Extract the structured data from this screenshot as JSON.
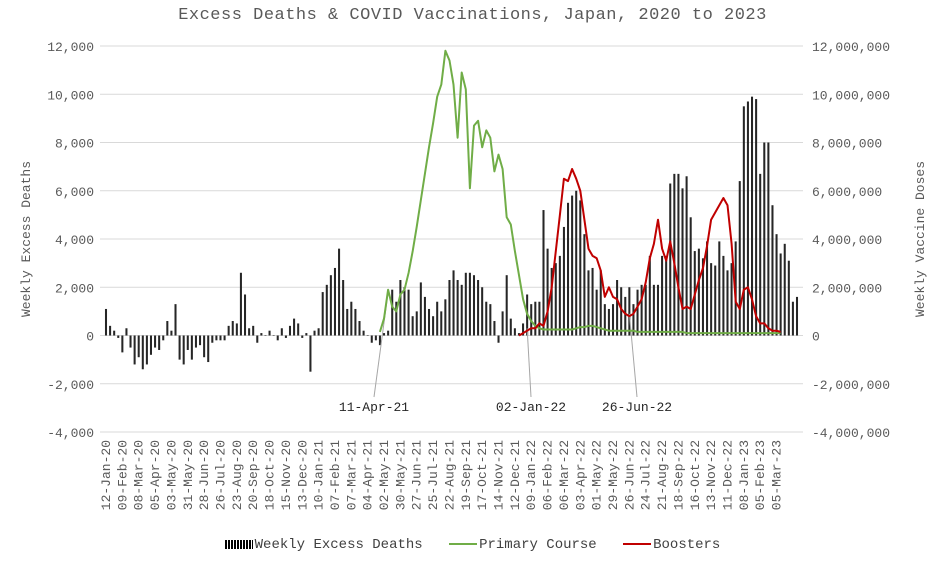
{
  "chart_data": {
    "type": "bar",
    "title": "Excess Deaths & COVID Vaccinations, Japan, 2020 to 2023",
    "ylabel": "Weekly Excess Deaths",
    "ylabel_right": "Weekly Vaccine Doses",
    "ylim": [
      -4000,
      12000
    ],
    "ylim_right": [
      -4000000,
      12000000
    ],
    "y_ticks": [
      "-4,000",
      "-2,000",
      "0",
      "2,000",
      "4,000",
      "6,000",
      "8,000",
      "10,000",
      "12,000"
    ],
    "y_right_ticks": [
      "-4,000,000",
      "-2,000,000",
      "0",
      "2,000,000",
      "4,000,000",
      "6,000,000",
      "8,000,000",
      "10,000,000",
      "12,000,000"
    ],
    "grid": true,
    "legend_position": "bottom",
    "x_tick_labels": [
      "12-Jan-20",
      "09-Feb-20",
      "08-Mar-20",
      "05-Apr-20",
      "03-May-20",
      "31-May-20",
      "28-Jun-20",
      "26-Jul-20",
      "23-Aug-20",
      "20-Sep-20",
      "18-Oct-20",
      "15-Nov-20",
      "13-Dec-20",
      "10-Jan-21",
      "07-Feb-21",
      "07-Mar-21",
      "04-Apr-21",
      "02-May-21",
      "30-May-21",
      "27-Jun-21",
      "25-Jul-21",
      "22-Aug-21",
      "19-Sep-21",
      "17-Oct-21",
      "14-Nov-21",
      "12-Dec-21",
      "09-Jan-22",
      "06-Feb-22",
      "06-Mar-22",
      "03-Apr-22",
      "01-May-22",
      "29-May-22",
      "26-Jun-22",
      "24-Jul-22",
      "21-Aug-22",
      "18-Sep-22",
      "16-Oct-22",
      "13-Nov-22",
      "11-Dec-22",
      "08-Jan-23",
      "05-Feb-23",
      "05-Mar-23"
    ],
    "series": [
      {
        "name": "Weekly Excess Deaths",
        "kind": "bar",
        "color": "#262626",
        "values": [
          1100,
          400,
          200,
          -100,
          -700,
          300,
          -500,
          -1200,
          -900,
          -1400,
          -1200,
          -800,
          -500,
          -600,
          -200,
          600,
          200,
          1300,
          -1000,
          -1200,
          -600,
          -1000,
          -500,
          -400,
          -900,
          -1100,
          -300,
          -200,
          -200,
          -200,
          400,
          600,
          500,
          2600,
          1700,
          300,
          400,
          -300,
          100,
          0,
          200,
          0,
          -200,
          300,
          -100,
          400,
          700,
          500,
          -100,
          100,
          -1500,
          200,
          300,
          1800,
          2100,
          2500,
          2800,
          3600,
          2300,
          1100,
          1400,
          1100,
          600,
          200,
          0,
          -300,
          -200,
          -400,
          100,
          200,
          1900,
          1400,
          2300,
          2000,
          1900,
          800,
          1000,
          2200,
          1600,
          1100,
          800,
          1400,
          1000,
          1500,
          2300,
          2700,
          2300,
          2100,
          2600,
          2600,
          2500,
          2300,
          2000,
          1400,
          1300,
          600,
          -300,
          1000,
          2500,
          700,
          300,
          100,
          500,
          1700,
          1300,
          1400,
          1400,
          5200,
          3600,
          2800,
          3000,
          3300,
          4500,
          5500,
          5800,
          6000,
          5600,
          4200,
          2700,
          2800,
          1900,
          2700,
          1300,
          1100,
          1300,
          2300,
          2000,
          1600,
          2000,
          1300,
          1900,
          2100,
          2100,
          3300,
          2100,
          2100,
          3300,
          3300,
          6300,
          6700,
          6700,
          6100,
          6600,
          4900,
          3500,
          3600,
          3200,
          3900,
          3000,
          2900,
          3900,
          3300,
          2700,
          3000,
          3900,
          6400,
          9500,
          9700,
          9900,
          9800,
          6700,
          8000,
          8000,
          5400,
          4200,
          3400,
          3800,
          3100,
          1400,
          1600
        ]
      },
      {
        "name": "Primary Course",
        "kind": "line",
        "color": "#70ad47",
        "values": [
          150000,
          700000,
          1900000,
          1200000,
          1000000,
          1700000,
          1900000,
          2600000,
          3500000,
          4500000,
          5600000,
          6700000,
          7800000,
          8800000,
          9900000,
          10400000,
          11800000,
          11400000,
          10400000,
          8200000,
          10900000,
          10200000,
          6100000,
          8700000,
          8900000,
          7800000,
          8500000,
          8200000,
          6800000,
          7500000,
          6900000,
          4900000,
          4600000,
          3500000,
          2500000,
          1500000,
          900000,
          600000,
          400000,
          300000,
          250000,
          250000,
          250000,
          250000,
          250000,
          250000,
          250000,
          250000,
          300000,
          350000,
          350000,
          400000,
          400000,
          350000,
          300000,
          250000,
          200000,
          200000,
          200000,
          200000,
          200000,
          200000,
          200000,
          150000,
          150000,
          150000,
          150000,
          150000,
          150000,
          150000,
          150000,
          150000,
          150000,
          150000,
          150000,
          100000,
          100000,
          100000,
          100000,
          100000,
          100000,
          100000,
          100000,
          100000,
          100000,
          100000,
          100000,
          100000,
          100000,
          100000,
          100000,
          100000,
          100000,
          100000,
          100000,
          100000,
          100000,
          100000,
          100000
        ]
      },
      {
        "name": "Boosters",
        "kind": "line",
        "color": "#c00000",
        "values": [
          0,
          100000,
          200000,
          300000,
          300000,
          500000,
          400000,
          1000000,
          2000000,
          3500000,
          5000000,
          6500000,
          6400000,
          6900000,
          6500000,
          6000000,
          4800000,
          3600000,
          3300000,
          3200000,
          2700000,
          1600000,
          2000000,
          1600000,
          1500000,
          1100000,
          900000,
          800000,
          900000,
          1200000,
          1500000,
          2200000,
          3200000,
          3800000,
          4800000,
          3600000,
          3100000,
          3900000,
          3000000,
          2000000,
          1100000,
          1200000,
          1100000,
          1700000,
          2300000,
          2800000,
          3700000,
          4800000,
          5100000,
          5400000,
          5700000,
          5400000,
          3800000,
          1400000,
          1100000,
          1900000,
          2000000,
          1500000,
          800000,
          500000,
          500000,
          300000,
          200000,
          200000,
          150000
        ]
      }
    ],
    "annotations": [
      "11-Apr-21",
      "02-Jan-22",
      "26-Jun-22"
    ]
  }
}
